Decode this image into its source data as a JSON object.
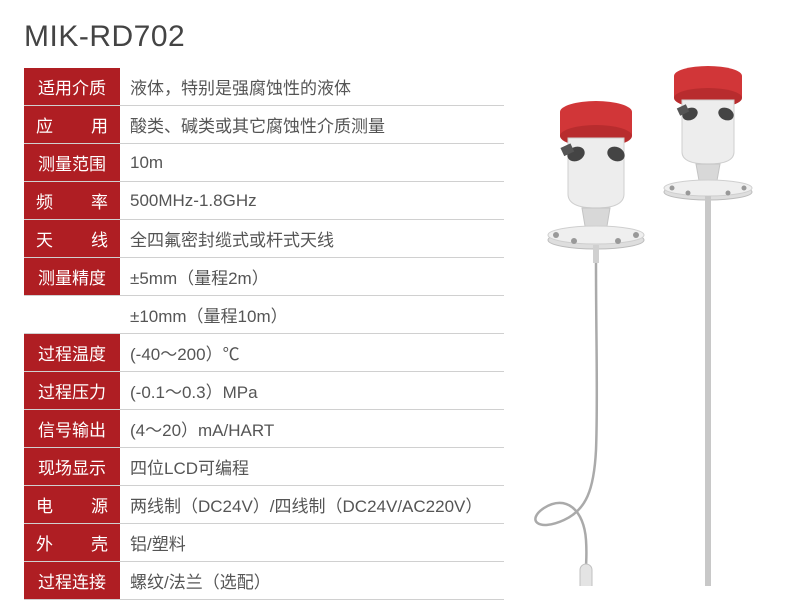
{
  "title": "MIK-RD702",
  "colors": {
    "label_bg": "#af1e23",
    "label_text": "#ffffff",
    "value_text": "#555555",
    "title_text": "#444444",
    "border": "#d0d0d0",
    "background": "#ffffff",
    "product_red": "#d13638",
    "product_metal": "#cfcfcf",
    "product_body": "#e8e8e8"
  },
  "specs": [
    {
      "label": "适用介质",
      "value": "液体，特别是强腐蚀性的液体",
      "justify": false
    },
    {
      "label_chars": [
        "应",
        "用"
      ],
      "value": "酸类、碱类或其它腐蚀性介质测量",
      "justify": true
    },
    {
      "label": "测量范围",
      "value": "10m",
      "justify": false
    },
    {
      "label_chars": [
        "频",
        "率"
      ],
      "value": "500MHz-1.8GHz",
      "justify": true
    },
    {
      "label_chars": [
        "天",
        "线"
      ],
      "value": "全四氟密封缆式或杆式天线",
      "justify": true
    },
    {
      "label": "测量精度",
      "value": "±5mm（量程2m）",
      "justify": false
    },
    {
      "label_empty": true,
      "value": "±10mm（量程10m）"
    },
    {
      "label": "过程温度",
      "value": "(-40～200）℃",
      "justify": false
    },
    {
      "label": "过程压力",
      "value": "(-0.1～0.3）MPa",
      "justify": false
    },
    {
      "label": "信号输出",
      "value": "(4～20）mA/HART",
      "justify": false
    },
    {
      "label": "现场显示",
      "value": "四位LCD可编程",
      "justify": false
    },
    {
      "label_chars": [
        "电",
        "源"
      ],
      "value": "两线制（DC24V）/四线制（DC24V/AC220V）",
      "justify": true
    },
    {
      "label_chars": [
        "外",
        "壳"
      ],
      "value": "铝/塑料",
      "justify": true
    },
    {
      "label": "过程连接",
      "value": "螺纹/法兰（选配）",
      "justify": false
    }
  ],
  "product": {
    "description": "radar-level-sensor-pair",
    "cap_color": "#d13638",
    "body_color": "#e8e8e8",
    "flange_color": "#cfcfcf",
    "rod_color": "#b8b8b8",
    "cable_color": "#aaaaaa"
  }
}
